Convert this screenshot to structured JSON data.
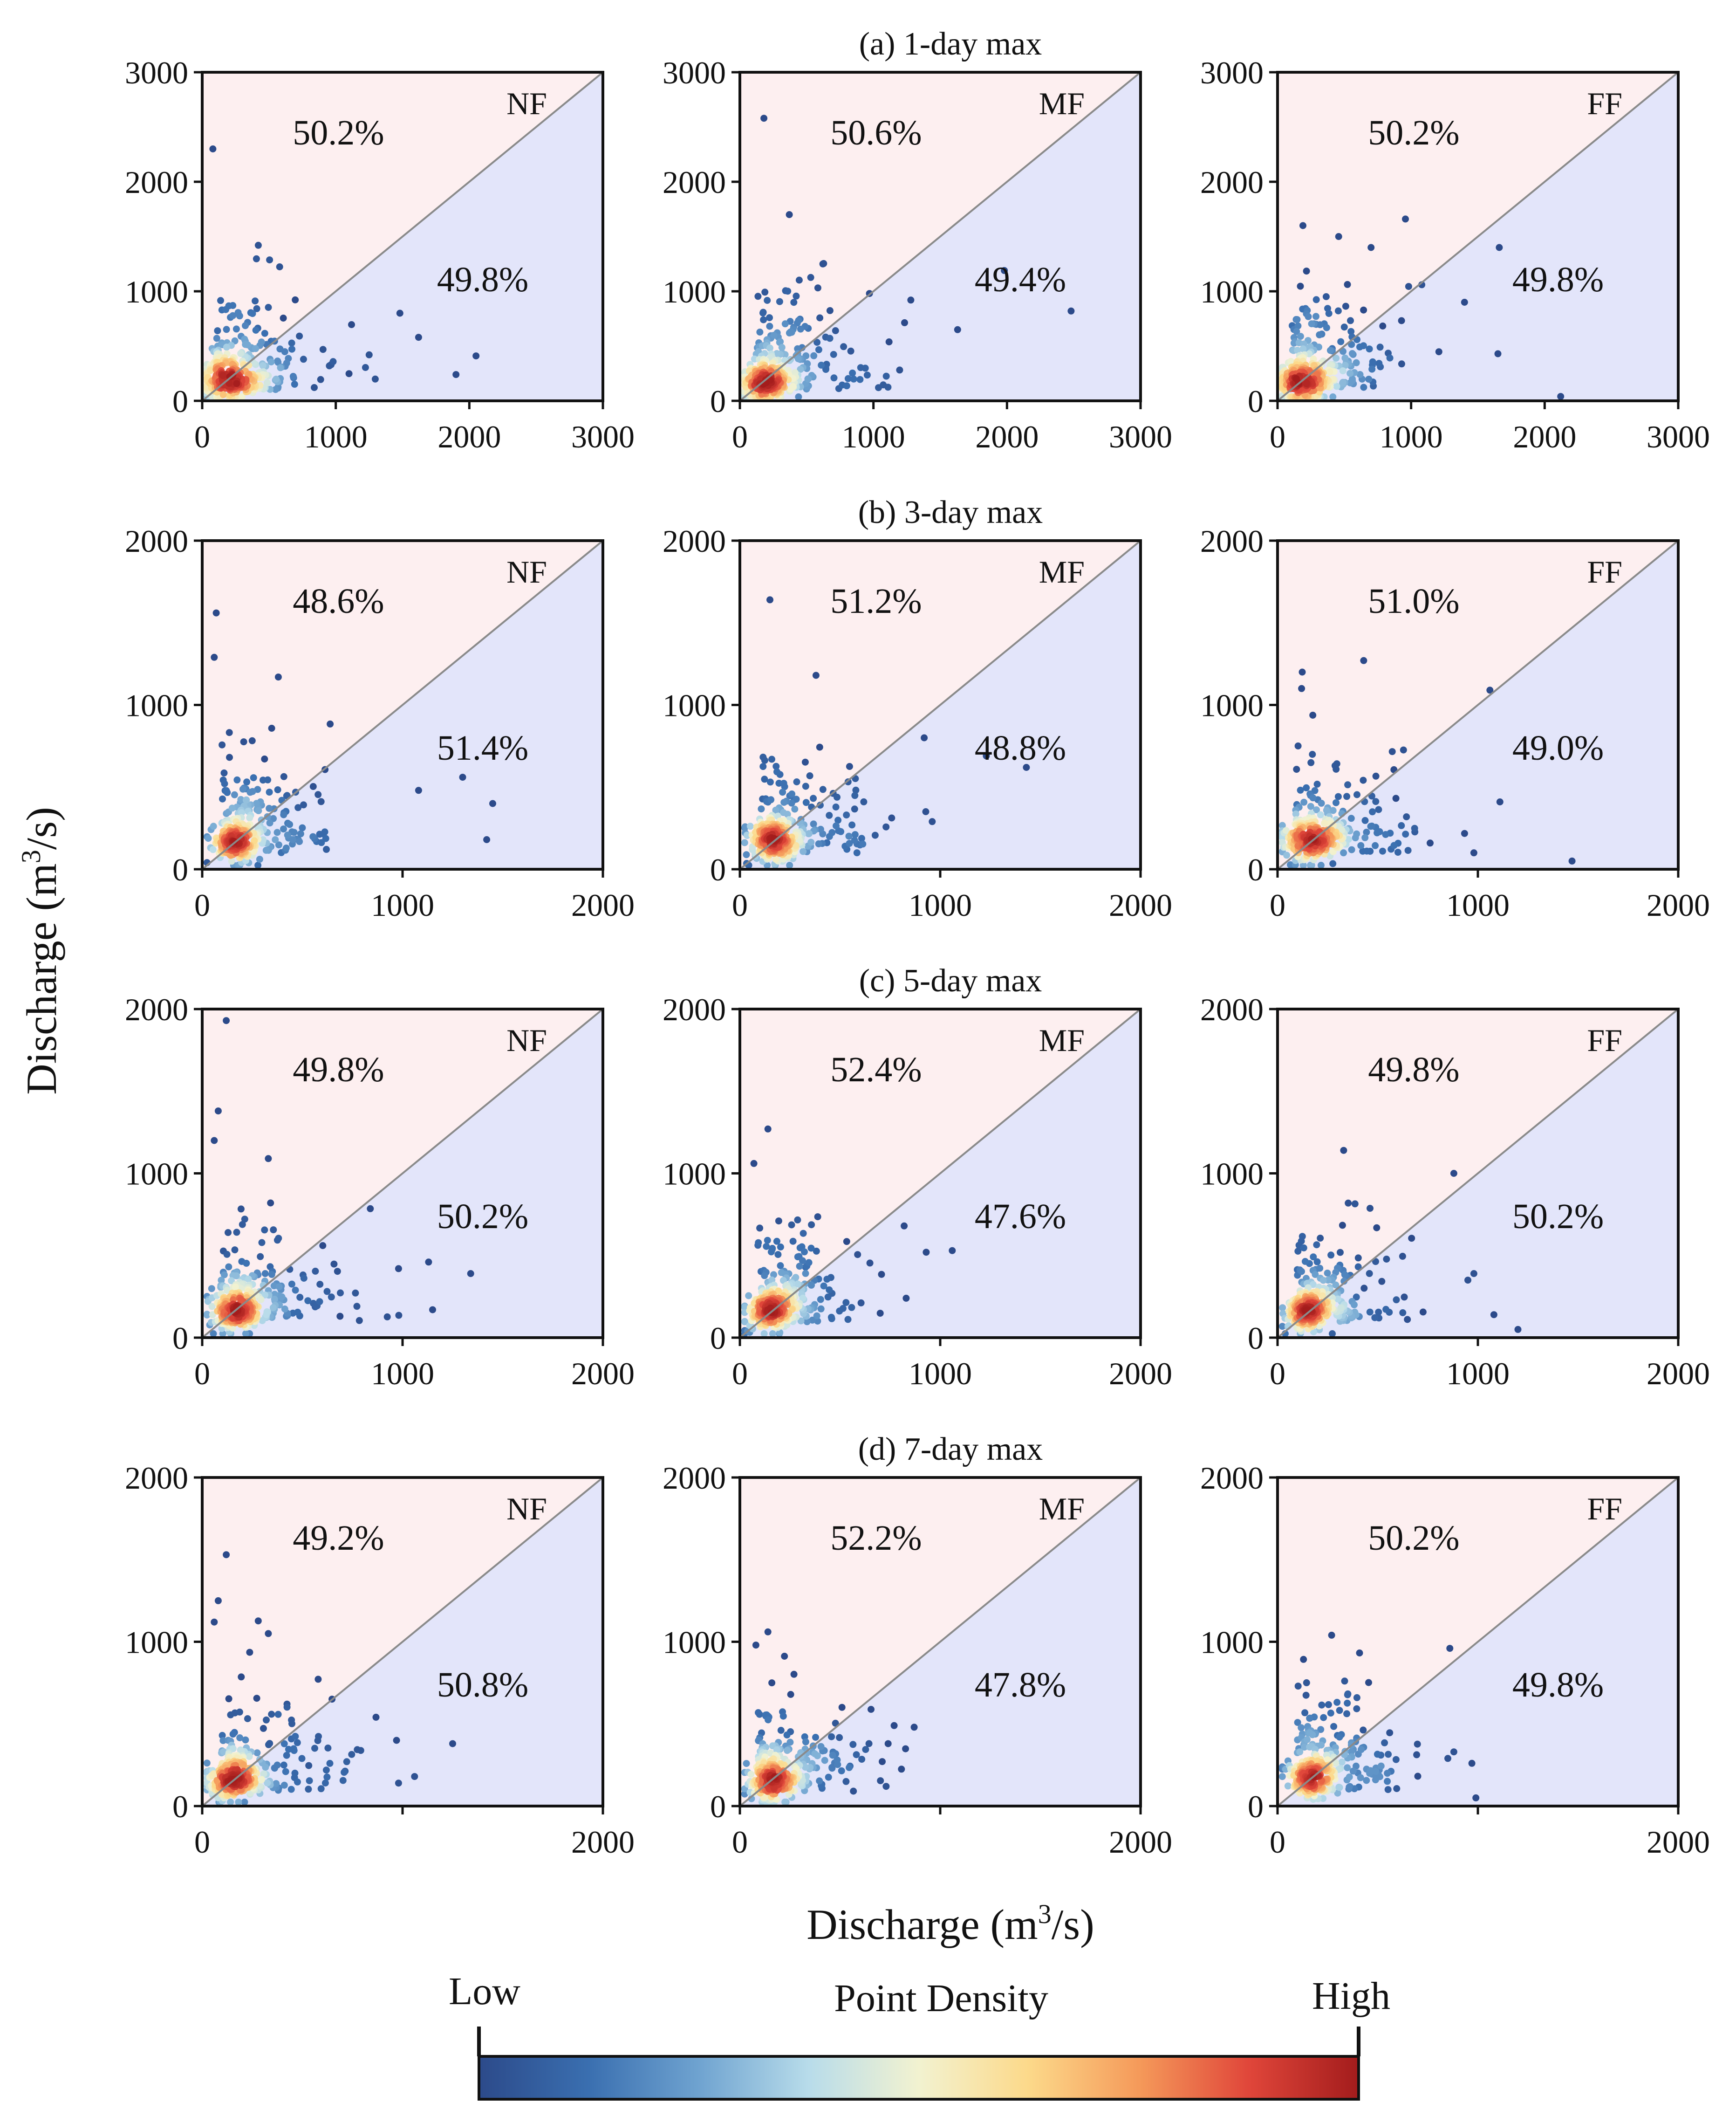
{
  "chart_data": {
    "type": "scatter",
    "description_note": "",
    "y_axis_title": "Discharge (m3/s)",
    "x_axis_title": "Discharge (m3/s)",
    "axis_unit_base": "Discharge (m",
    "axis_unit_sup": "3",
    "axis_unit_tail": "/s)",
    "grid": false,
    "reference_line": "1:1",
    "colorbar": {
      "title": "Point Density",
      "low_label": "Low",
      "high_label": "High",
      "colors": [
        "#2c4a8a",
        "#3a6fb0",
        "#6fa3d0",
        "#b8dcea",
        "#f2f2d0",
        "#fcd98a",
        "#f59a5a",
        "#e0463a",
        "#a31c1c"
      ]
    },
    "upper_fill": "#fdeff0",
    "lower_fill": "#e3e5fa",
    "rows": [
      {
        "title": "(a) 1-day max",
        "xlim": [
          0,
          3000
        ],
        "ylim": [
          0,
          3000
        ],
        "xticks": [
          "0",
          "1000",
          "2000",
          "3000"
        ],
        "yticks": [
          "0",
          "1000",
          "2000",
          "3000"
        ],
        "panels": [
          {
            "label": "NF",
            "upper_pct": "50.2%",
            "lower_pct": "49.8%",
            "seed": 11,
            "pile": [
              170,
              170
            ],
            "outliers": [
              [
                80,
                2300
              ],
              [
                420,
                1420
              ],
              [
                1480,
                800
              ],
              [
                1620,
                580
              ],
              [
                2050,
                410
              ],
              [
                1900,
                240
              ],
              [
                1250,
                420
              ]
            ]
          },
          {
            "label": "MF",
            "upper_pct": "50.6%",
            "lower_pct": "49.4%",
            "seed": 23,
            "pile": [
              180,
              160
            ],
            "outliers": [
              [
                180,
                2580
              ],
              [
                370,
                1700
              ],
              [
                2480,
                820
              ],
              [
                1630,
                650
              ],
              [
                1280,
                920
              ],
              [
                1980,
                1190
              ],
              [
                970,
                980
              ]
            ]
          },
          {
            "label": "FF",
            "upper_pct": "50.2%",
            "lower_pct": "49.8%",
            "seed": 37,
            "pile": [
              180,
              170
            ],
            "outliers": [
              [
                190,
                1600
              ],
              [
                700,
                1400
              ],
              [
                1660,
                1400
              ],
              [
                1650,
                430
              ],
              [
                2120,
                40
              ],
              [
                1080,
                1060
              ],
              [
                1400,
                900
              ]
            ]
          }
        ]
      },
      {
        "title": "(b) 3-day max",
        "xlim": [
          0,
          2000
        ],
        "ylim": [
          0,
          2000
        ],
        "xticks": [
          "0",
          "1000",
          "2000"
        ],
        "yticks": [
          "0",
          "1000",
          "2000"
        ],
        "panels": [
          {
            "label": "NF",
            "upper_pct": "48.6%",
            "lower_pct": "51.4%",
            "seed": 41,
            "pile": [
              160,
              160
            ],
            "outliers": [
              [
                70,
                1560
              ],
              [
                60,
                1290
              ],
              [
                380,
                1170
              ],
              [
                1300,
                560
              ],
              [
                1450,
                400
              ],
              [
                1420,
                180
              ],
              [
                1080,
                480
              ]
            ]
          },
          {
            "label": "MF",
            "upper_pct": "51.2%",
            "lower_pct": "48.8%",
            "seed": 53,
            "pile": [
              160,
              160
            ],
            "outliers": [
              [
                150,
                1640
              ],
              [
                1430,
                620
              ],
              [
                1230,
                690
              ],
              [
                960,
                290
              ],
              [
                920,
                800
              ],
              [
                380,
                1180
              ]
            ]
          },
          {
            "label": "FF",
            "upper_pct": "51.0%",
            "lower_pct": "49.0%",
            "seed": 67,
            "pile": [
              150,
              160
            ],
            "outliers": [
              [
                430,
                1270
              ],
              [
                1060,
                1090
              ],
              [
                1470,
                50
              ],
              [
                1110,
                410
              ],
              [
                980,
                100
              ],
              [
                120,
                1100
              ]
            ]
          }
        ]
      },
      {
        "title": "(c) 5-day max",
        "xlim": [
          0,
          2000
        ],
        "ylim": [
          0,
          2000
        ],
        "xticks": [
          "0",
          "1000",
          "2000"
        ],
        "yticks": [
          "0",
          "1000",
          "2000"
        ],
        "panels": [
          {
            "label": "NF",
            "upper_pct": "49.8%",
            "lower_pct": "50.2%",
            "seed": 71,
            "pile": [
              150,
              160
            ],
            "outliers": [
              [
                120,
                1930
              ],
              [
                80,
                1380
              ],
              [
                60,
                1200
              ],
              [
                330,
                1090
              ],
              [
                1340,
                390
              ],
              [
                1130,
                460
              ],
              [
                1150,
                170
              ],
              [
                980,
                420
              ]
            ]
          },
          {
            "label": "MF",
            "upper_pct": "52.4%",
            "lower_pct": "47.6%",
            "seed": 83,
            "pile": [
              150,
              160
            ],
            "outliers": [
              [
                140,
                1270
              ],
              [
                70,
                1060
              ],
              [
                1060,
                530
              ],
              [
                930,
                520
              ],
              [
                820,
                680
              ],
              [
                830,
                240
              ]
            ]
          },
          {
            "label": "FF",
            "upper_pct": "49.8%",
            "lower_pct": "50.2%",
            "seed": 97,
            "pile": [
              160,
              160
            ],
            "outliers": [
              [
                330,
                1140
              ],
              [
                880,
                1000
              ],
              [
                1200,
                50
              ],
              [
                980,
                390
              ],
              [
                950,
                350
              ],
              [
                1080,
                140
              ]
            ]
          }
        ]
      },
      {
        "title": "(d) 7-day max",
        "xlim": [
          0,
          2000
        ],
        "ylim": [
          0,
          2000
        ],
        "xticks": [
          "0",
          "",
          "2000"
        ],
        "yticks": [
          "0",
          "1000",
          "2000"
        ],
        "panels": [
          {
            "label": "NF",
            "upper_pct": "49.2%",
            "lower_pct": "50.8%",
            "seed": 101,
            "pile": [
              150,
              160
            ],
            "outliers": [
              [
                120,
                1530
              ],
              [
                80,
                1250
              ],
              [
                60,
                1120
              ],
              [
                330,
                1050
              ],
              [
                1250,
                380
              ],
              [
                970,
                400
              ],
              [
                980,
                140
              ],
              [
                1060,
                180
              ]
            ]
          },
          {
            "label": "MF",
            "upper_pct": "52.2%",
            "lower_pct": "47.8%",
            "seed": 113,
            "pile": [
              150,
              150
            ],
            "outliers": [
              [
                140,
                1060
              ],
              [
                80,
                980
              ],
              [
                770,
                490
              ],
              [
                870,
                480
              ],
              [
                740,
                380
              ],
              [
                730,
                120
              ]
            ]
          },
          {
            "label": "FF",
            "upper_pct": "50.2%",
            "lower_pct": "49.8%",
            "seed": 127,
            "pile": [
              160,
              160
            ],
            "outliers": [
              [
                270,
                1040
              ],
              [
                860,
                960
              ],
              [
                990,
                50
              ],
              [
                880,
                330
              ],
              [
                850,
                290
              ],
              [
                970,
                260
              ]
            ]
          }
        ]
      }
    ]
  }
}
